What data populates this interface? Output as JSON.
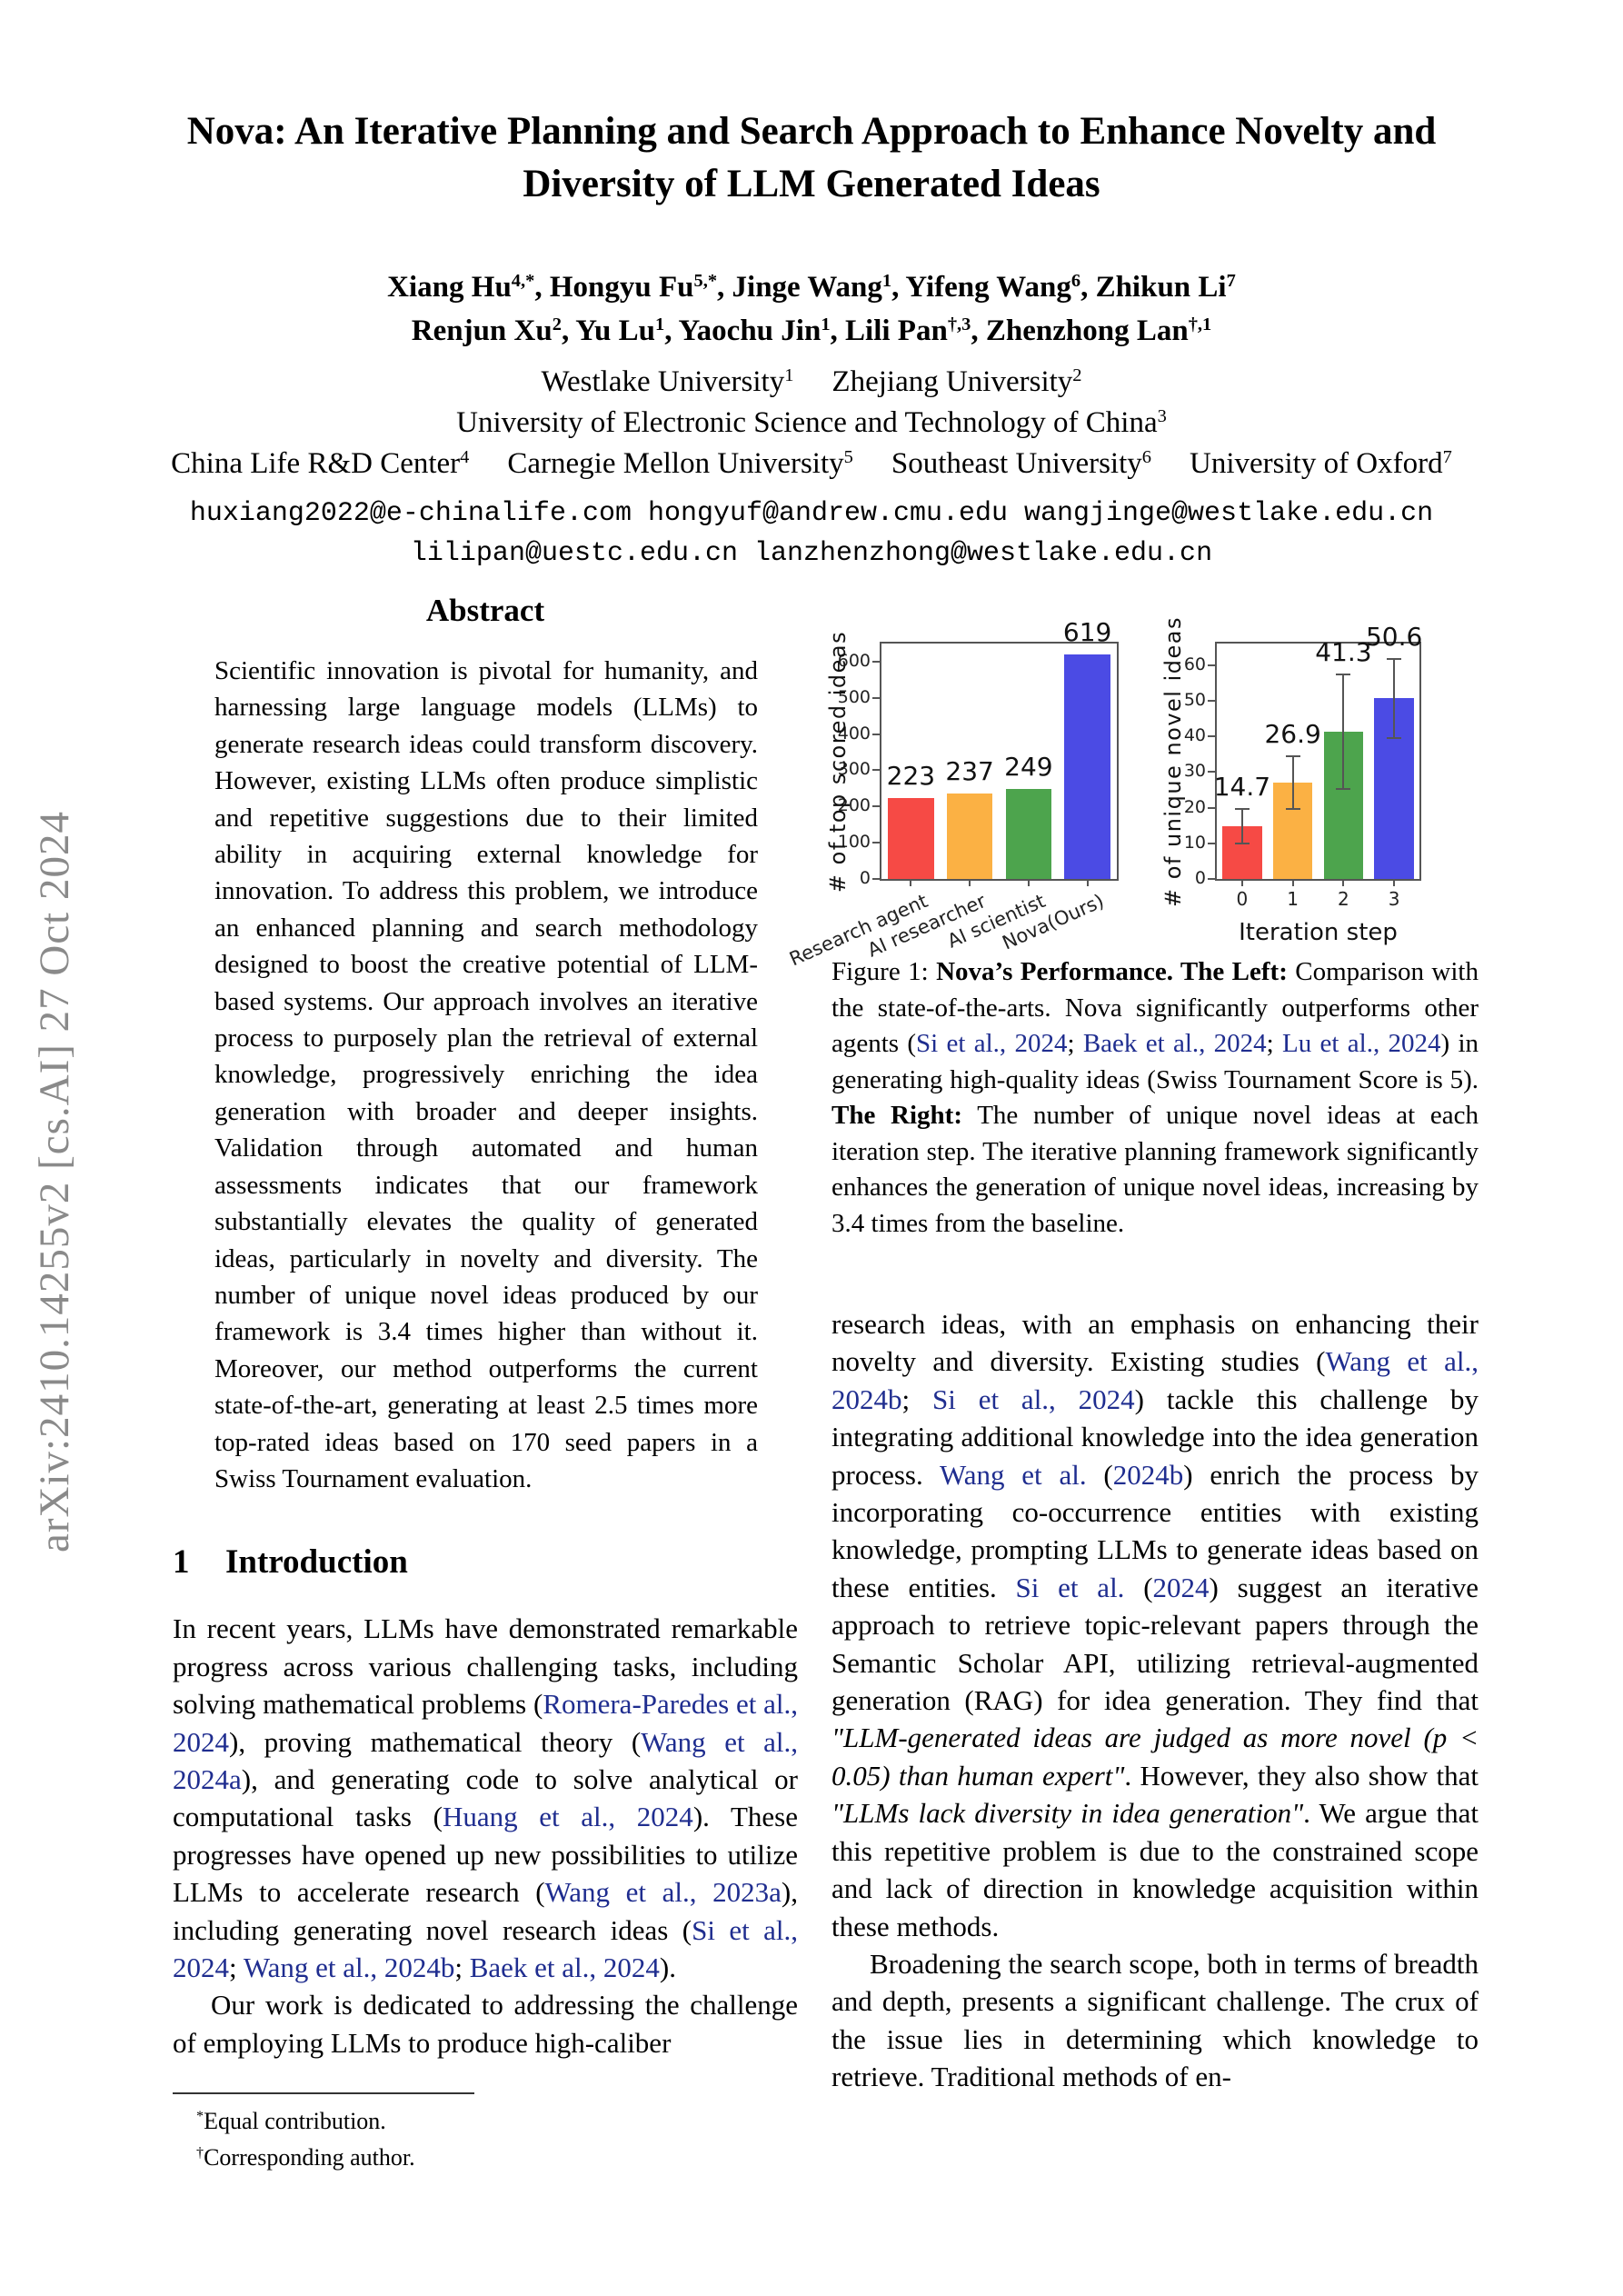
{
  "colors": {
    "citation": "#1f2d8f",
    "watermark": "#8a8a8a",
    "bar_red": "#f64a45",
    "bar_orange": "#fbb144",
    "bar_green": "#4da44d",
    "bar_blue": "#4b4be4"
  },
  "arxiv_watermark": "arXiv:2410.14255v2  [cs.AI]  27 Oct 2024",
  "header": {
    "title_line1": "Nova: An Iterative Planning and Search Approach to Enhance Novelty and",
    "title_line2": "Diversity of LLM Generated Ideas",
    "authors_line1": [
      {
        "name": "Xiang Hu",
        "sup": "4,*"
      },
      {
        "name": "Hongyu Fu",
        "sup": "5,*"
      },
      {
        "name": "Jinge Wang",
        "sup": "1"
      },
      {
        "name": "Yifeng Wang",
        "sup": "6"
      },
      {
        "name": "Zhikun Li",
        "sup": "7"
      }
    ],
    "authors_line2": [
      {
        "name": "Renjun Xu",
        "sup": "2"
      },
      {
        "name": "Yu Lu",
        "sup": "1"
      },
      {
        "name": "Yaochu Jin",
        "sup": "1"
      },
      {
        "name": "Lili Pan",
        "sup": "†,3"
      },
      {
        "name": "Zhenzhong Lan",
        "sup": "†,1"
      }
    ],
    "affil_line1": [
      {
        "text": "Westlake University",
        "sup": "1"
      },
      {
        "text": "Zhejiang University",
        "sup": "2"
      }
    ],
    "affil_line2": [
      {
        "text": "University of Electronic Science and Technology of China",
        "sup": "3"
      }
    ],
    "affil_line3": [
      {
        "text": "China Life R&D Center",
        "sup": "4"
      },
      {
        "text": "Carnegie Mellon University",
        "sup": "5"
      },
      {
        "text": "Southeast University",
        "sup": "6"
      },
      {
        "text": "University of Oxford",
        "sup": "7"
      }
    ],
    "email_line1": "huxiang2022@e-chinalife.com hongyuf@andrew.cmu.edu wangjinge@westlake.edu.cn",
    "email_line2": "lilipan@uestc.edu.cn lanzhenzhong@westlake.edu.cn"
  },
  "abstract": {
    "heading": "Abstract",
    "text": "Scientific innovation is pivotal for humanity, and harnessing large language models (LLMs) to generate research ideas could transform discovery. However, existing LLMs often produce simplistic and repetitive suggestions due to their limited ability in acquiring external knowledge for innovation. To address this problem, we introduce an enhanced planning and search methodology designed to boost the creative potential of LLM-based systems. Our approach involves an iterative process to purposely plan the retrieval of external knowledge, progressively enriching the idea generation with broader and deeper insights. Validation through automated and human assessments indicates that our framework substantially elevates the quality of generated ideas, particularly in novelty and diversity. The number of unique novel ideas produced by our framework is 3.4 times higher than without it. Moreover, our method outperforms the current state-of-the-art, generating at least 2.5 times more top-rated ideas based on 170 seed papers in a Swiss Tournament evaluation."
  },
  "intro": {
    "number": "1",
    "title": "Introduction"
  },
  "paragraphs": {
    "intro_p1": [
      {
        "t": "In recent years, LLMs have demonstrated remarkable progress across various challenging tasks, including solving mathematical problems ("
      },
      {
        "t": "Romera-Paredes et al., 2024",
        "s": "cite"
      },
      {
        "t": "), proving mathematical theory ("
      },
      {
        "t": "Wang et al., 2024a",
        "s": "cite"
      },
      {
        "t": "), and generating code to solve analytical or computational tasks ("
      },
      {
        "t": "Huang et al., 2024",
        "s": "cite"
      },
      {
        "t": "). These progresses have opened up new possibilities to utilize LLMs to accelerate research ("
      },
      {
        "t": "Wang et al., 2023a",
        "s": "cite"
      },
      {
        "t": "), including generating novel research ideas ("
      },
      {
        "t": "Si et al., 2024",
        "s": "cite"
      },
      {
        "t": "; "
      },
      {
        "t": "Wang et al., 2024b",
        "s": "cite"
      },
      {
        "t": "; "
      },
      {
        "t": "Baek et al., 2024",
        "s": "cite"
      },
      {
        "t": ")."
      }
    ],
    "intro_p2": [
      {
        "t": "Our work is dedicated to addressing the challenge of employing LLMs to produce high-caliber"
      }
    ],
    "right_p1": [
      {
        "t": "research ideas, with an emphasis on enhancing their novelty and diversity. Existing studies ("
      },
      {
        "t": "Wang et al., 2024b",
        "s": "cite"
      },
      {
        "t": "; "
      },
      {
        "t": "Si et al., 2024",
        "s": "cite"
      },
      {
        "t": ") tackle this challenge by integrating additional knowledge into the idea generation process. "
      },
      {
        "t": "Wang et al.",
        "s": "cite"
      },
      {
        "t": " ("
      },
      {
        "t": "2024b",
        "s": "cite"
      },
      {
        "t": ") enrich the process by incorporating co-occurrence entities with existing knowledge, prompting LLMs to generate ideas based on these entities. "
      },
      {
        "t": "Si et al.",
        "s": "cite"
      },
      {
        "t": " ("
      },
      {
        "t": "2024",
        "s": "cite"
      },
      {
        "t": ") suggest an iterative approach to retrieve topic-relevant papers through the Semantic Scholar API, utilizing retrieval-augmented generation (RAG) for idea generation. They find that "
      },
      {
        "t": "\"LLM-generated ideas are judged as more novel (p < 0.05) than human expert\"",
        "s": "italic"
      },
      {
        "t": ". However, they also show that "
      },
      {
        "t": "\"LLMs lack diversity in idea generation\"",
        "s": "italic"
      },
      {
        "t": ". We argue that this repetitive problem is due to the constrained scope and lack of direction in knowledge acquisition within these methods."
      }
    ],
    "right_p2": [
      {
        "t": "Broadening the search scope, both in terms of breadth and depth, presents a significant challenge. The crux of the issue lies in determining which knowledge to retrieve. Traditional methods of en-"
      }
    ]
  },
  "figure": {
    "caption": [
      {
        "t": "Figure 1: "
      },
      {
        "t": "Nova’s Performance. The Left:",
        "s": "bold"
      },
      {
        "t": " Comparison with the state-of-the-arts. Nova significantly outperforms other agents ("
      },
      {
        "t": "Si et al., 2024",
        "s": "cite"
      },
      {
        "t": "; "
      },
      {
        "t": "Baek et al., 2024",
        "s": "cite"
      },
      {
        "t": "; "
      },
      {
        "t": "Lu et al., 2024",
        "s": "cite"
      },
      {
        "t": ") in generating high-quality ideas (Swiss Tournament Score is 5). "
      },
      {
        "t": "The Right:",
        "s": "bold"
      },
      {
        "t": " The number of unique novel ideas at each iteration step. The iterative planning framework significantly enhances the generation of unique novel ideas, increasing by 3.4 times from the baseline."
      }
    ]
  },
  "footnotes": [
    {
      "mark": "*",
      "text": "Equal contribution."
    },
    {
      "mark": "†",
      "text": "Corresponding author."
    }
  ],
  "chart_data": [
    {
      "type": "bar",
      "title": "",
      "categories": [
        "Research agent",
        "AI researcher",
        "AI scientist",
        "Nova(Ours)"
      ],
      "values": [
        223,
        237,
        249,
        619
      ],
      "bar_labels": [
        "223",
        "237",
        "249",
        "619"
      ],
      "bar_colors": [
        "#f64a45",
        "#fbb144",
        "#4da44d",
        "#4b4be4"
      ],
      "xlabel": "",
      "ylabel": "# of top scored ideas",
      "yticks": [
        0,
        100,
        200,
        300,
        400,
        500,
        600
      ],
      "ylim": [
        0,
        650
      ],
      "xtick_rotation": -24,
      "grid": false,
      "legend": false
    },
    {
      "type": "bar",
      "title": "",
      "categories": [
        "0",
        "1",
        "2",
        "3"
      ],
      "values": [
        14.7,
        26.9,
        41.3,
        50.6
      ],
      "errors": [
        4.8,
        7.4,
        16.0,
        11.1
      ],
      "bar_labels": [
        "14.7",
        "26.9",
        "41.3",
        "50.6"
      ],
      "bar_colors": [
        "#f64a45",
        "#fbb144",
        "#4da44d",
        "#4b4be4"
      ],
      "xlabel": "Iteration step",
      "ylabel": "# of unique novel ideas",
      "yticks": [
        0,
        10,
        20,
        30,
        40,
        50,
        60
      ],
      "ylim": [
        0,
        66
      ],
      "xtick_rotation": 0,
      "grid": false,
      "legend": false
    }
  ]
}
